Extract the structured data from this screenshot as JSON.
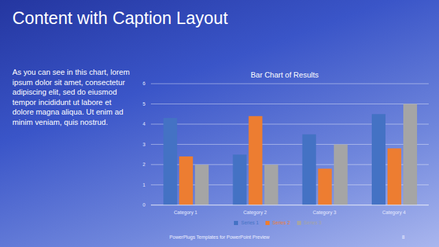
{
  "slide": {
    "title": "Content with Caption Layout",
    "caption": "As you can see in this chart, lorem ipsum dolor sit amet, consectetur adipiscing elit, sed do eiusmod tempor incididunt ut labore et dolore magna aliqua. Ut enim ad minim veniam, quis nostrud.",
    "footer": "PowerPlugs Templates for PowerPoint Preview",
    "page_number": 8
  },
  "chart_data": {
    "type": "bar",
    "title": "Bar Chart of Results",
    "categories": [
      "Category 1",
      "Category 2",
      "Category 3",
      "Category 4"
    ],
    "series": [
      {
        "name": "Series 1",
        "color": "#4472c4",
        "values": [
          4.3,
          2.5,
          3.5,
          4.5
        ]
      },
      {
        "name": "Series 2",
        "color": "#ed7d31",
        "values": [
          2.4,
          4.4,
          1.8,
          2.8
        ]
      },
      {
        "name": "Series 3",
        "color": "#a5a5a5",
        "values": [
          2,
          2,
          3,
          5
        ]
      }
    ],
    "ylim": [
      0,
      6
    ],
    "yticks": [
      0,
      1,
      2,
      3,
      4,
      5,
      6
    ],
    "grid": true,
    "legend": "bottom"
  }
}
